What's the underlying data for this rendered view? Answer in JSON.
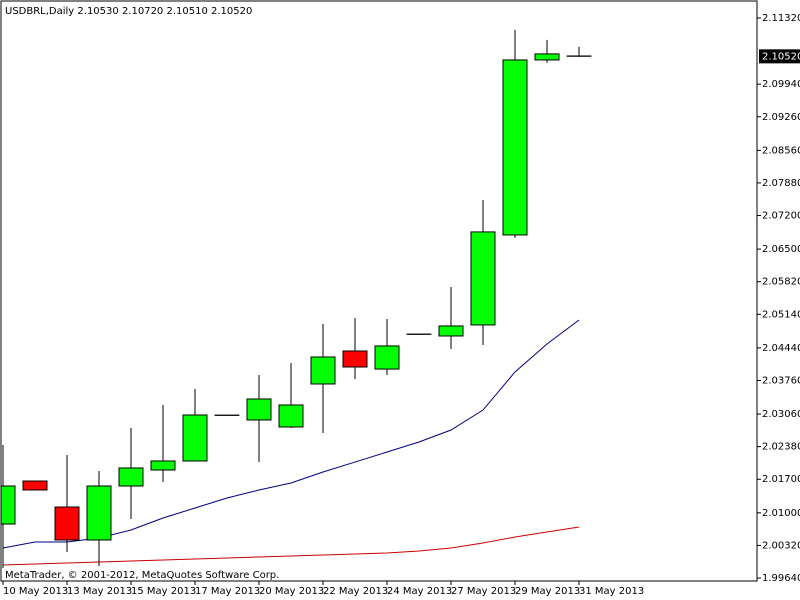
{
  "chart_data": {
    "type": "candlestick",
    "title": "USDBRL,Daily  2.10530 2.10720 2.10510 2.10520",
    "footer": "MetaTrader, © 2001-2012, MetaQuotes Software Corp.",
    "categories": [
      "10 May 2013",
      null,
      "13 May 2013",
      null,
      "15 May 2013",
      null,
      "17 May 2013",
      null,
      "20 May 2013",
      null,
      "22 May 2013",
      null,
      "24 May 2013",
      null,
      "27 May 2013",
      null,
      "29 May 2013",
      null,
      "31 May 2013"
    ],
    "open": [
      2.00766,
      2.01663,
      2.01121,
      2.00433,
      2.01559,
      2.01893,
      2.02081,
      2.0303,
      2.02936,
      2.0279,
      2.03687,
      2.04375,
      2.03998,
      2.0472,
      2.04688,
      2.04918,
      2.06795,
      2.10445,
      2.1053
    ],
    "high": [
      2.02414,
      2.01663,
      2.02206,
      2.01872,
      2.02769,
      2.03249,
      2.03583,
      2.0304,
      2.03875,
      2.04125,
      2.04938,
      2.05064,
      2.05043,
      2.0473,
      2.0571,
      2.07525,
      2.11071,
      2.10863,
      2.1072
    ],
    "low": [
      1.99849,
      2.01476,
      2.00182,
      1.9989,
      2.00871,
      2.01643,
      2.02081,
      2.0303,
      2.0206,
      2.02769,
      2.02665,
      2.03791,
      2.03875,
      2.0472,
      2.04417,
      2.045,
      2.06733,
      2.10383,
      2.1051
    ],
    "close": [
      2.01559,
      2.01476,
      2.00433,
      2.01559,
      2.01935,
      2.02081,
      2.0304,
      2.0304,
      2.03374,
      2.03249,
      2.0425,
      2.04041,
      2.0448,
      2.0473,
      2.04897,
      2.06858,
      2.10445,
      2.10571,
      2.1052
    ],
    "up_color": "#00ff00",
    "down_color": "#ff0000",
    "lines": [
      {
        "color": "#000080",
        "values": [
          2.00266,
          2.00391,
          2.00391,
          2.00474,
          2.00641,
          2.00892,
          2.011,
          2.01309,
          2.01476,
          2.01622,
          2.01851,
          2.02058,
          2.02268,
          2.02477,
          2.02727,
          2.03144,
          2.03937,
          2.04521,
          2.05022
        ]
      },
      {
        "color": "#cc0000",
        "values": [
          1.99911,
          1.99932,
          1.99953,
          1.99974,
          1.99995,
          2.00015,
          2.00036,
          2.00057,
          2.00078,
          2.00099,
          2.0012,
          2.00141,
          2.00162,
          2.00203,
          2.00266,
          2.0037,
          2.00495,
          2.006,
          2.00704
        ]
      }
    ],
    "current_price": {
      "value": 2.1052,
      "label": "2.10520"
    },
    "ylim": [
      1.99557,
      2.11591
    ],
    "yticks": [
      {
        "value": 2.1132,
        "label": "2.11320"
      },
      {
        "value": 2.0994,
        "label": "2.09940"
      },
      {
        "value": 2.0926,
        "label": "2.09260"
      },
      {
        "value": 2.0856,
        "label": "2.08560"
      },
      {
        "value": 2.0788,
        "label": "2.07880"
      },
      {
        "value": 2.072,
        "label": "2.07200"
      },
      {
        "value": 2.065,
        "label": "2.06500"
      },
      {
        "value": 2.0582,
        "label": "2.05820"
      },
      {
        "value": 2.0514,
        "label": "2.05140"
      },
      {
        "value": 2.0444,
        "label": "2.04440"
      },
      {
        "value": 2.0376,
        "label": "2.03760"
      },
      {
        "value": 2.0306,
        "label": "2.03060"
      },
      {
        "value": 2.0238,
        "label": "2.02380"
      },
      {
        "value": 2.017,
        "label": "2.01700"
      },
      {
        "value": 2.01,
        "label": "2.01000"
      },
      {
        "value": 2.0032,
        "label": "2.00320"
      },
      {
        "value": 1.9964,
        "label": "1.99640"
      }
    ]
  }
}
